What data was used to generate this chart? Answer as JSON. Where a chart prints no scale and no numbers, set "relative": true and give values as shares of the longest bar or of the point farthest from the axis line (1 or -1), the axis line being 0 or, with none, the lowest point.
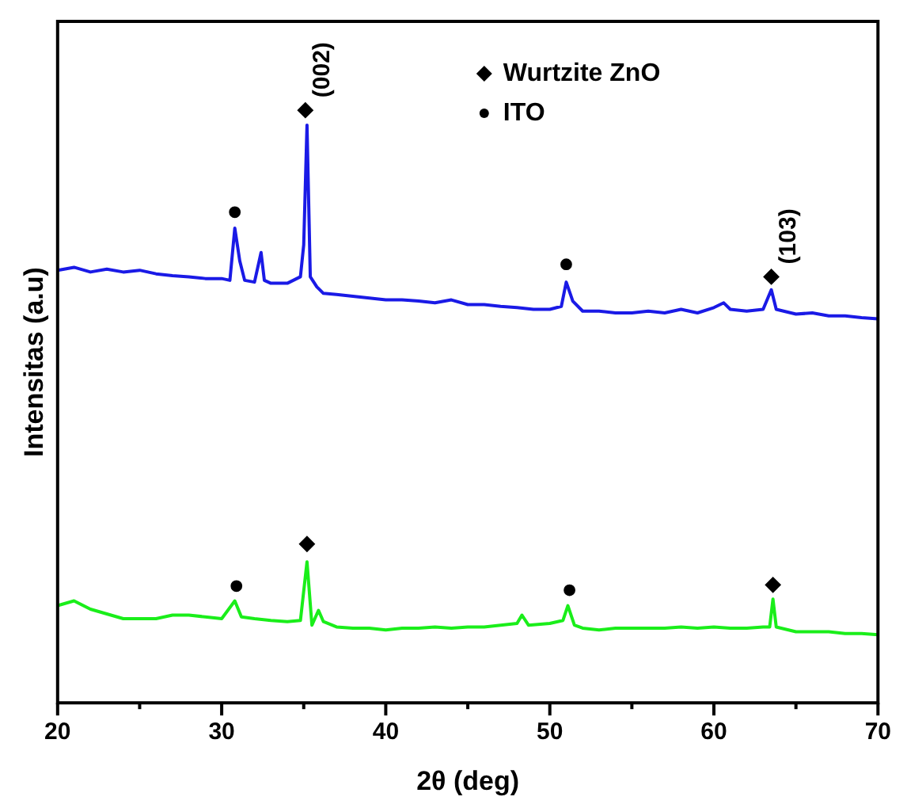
{
  "chart_data": {
    "type": "line",
    "xlabel": "2θ (deg)",
    "ylabel": "Intensitas (a.u)",
    "relative": true,
    "xlim": [
      20,
      70
    ],
    "xticks": [
      20,
      {
        "value": 25,
        "label": null
      },
      30,
      {
        "value": 35,
        "label": null
      },
      40,
      {
        "value": 45,
        "label": null
      },
      50,
      {
        "value": 55,
        "label": null
      },
      60,
      {
        "value": 65,
        "label": null
      },
      70
    ],
    "grid": false,
    "legend": "top right",
    "marker": "none",
    "line_style": "solid",
    "annotations": [
      {
        "text": "(002)",
        "x": 35.2,
        "y": 1.0
      },
      {
        "text": "(103)",
        "x": 63.6,
        "y": 0.719
      }
    ],
    "series": [
      {
        "color": "#1a1ae6",
        "x": [
          20,
          21,
          22,
          23,
          24,
          25,
          26,
          27,
          28,
          29,
          30,
          30.5,
          30.8,
          31.1,
          31.4,
          32,
          32.4,
          32.6,
          33,
          34,
          34.8,
          35.0,
          35.2,
          35.4,
          35.8,
          36.2,
          37,
          38,
          39,
          40,
          41,
          42,
          43,
          44,
          45,
          46,
          47,
          48,
          49,
          50,
          50.7,
          51.0,
          51.4,
          52,
          53,
          54,
          55,
          56,
          57,
          58,
          59,
          60,
          60.6,
          61,
          62,
          63,
          63.5,
          63.8,
          65,
          66,
          67,
          68,
          69,
          70
        ],
        "values": [
          0.73,
          0.735,
          0.727,
          0.732,
          0.727,
          0.73,
          0.724,
          0.721,
          0.719,
          0.716,
          0.716,
          0.713,
          0.801,
          0.746,
          0.713,
          0.71,
          0.76,
          0.713,
          0.708,
          0.708,
          0.719,
          0.773,
          0.975,
          0.719,
          0.702,
          0.691,
          0.689,
          0.686,
          0.683,
          0.68,
          0.68,
          0.678,
          0.675,
          0.68,
          0.672,
          0.672,
          0.669,
          0.667,
          0.664,
          0.664,
          0.669,
          0.71,
          0.678,
          0.661,
          0.661,
          0.658,
          0.658,
          0.661,
          0.658,
          0.664,
          0.658,
          0.667,
          0.675,
          0.664,
          0.661,
          0.664,
          0.697,
          0.664,
          0.656,
          0.658,
          0.653,
          0.653,
          0.65,
          0.648
        ]
      },
      {
        "color": "#1aee1a",
        "x": [
          20,
          21,
          22,
          23,
          24,
          25,
          26,
          27,
          28,
          29,
          30,
          30.8,
          31.2,
          32,
          33,
          34,
          34.8,
          35.2,
          35.5,
          35.9,
          36.2,
          37,
          38,
          39,
          40,
          41,
          42,
          43,
          44,
          45,
          46,
          47,
          48,
          48.3,
          48.7,
          50,
          50.8,
          51.1,
          51.5,
          52,
          53,
          54,
          55,
          56,
          57,
          58,
          59,
          60,
          61,
          62,
          63,
          63.4,
          63.6,
          63.8,
          65,
          66,
          67,
          68,
          69,
          70
        ],
        "values": [
          0.164,
          0.172,
          0.158,
          0.15,
          0.142,
          0.142,
          0.142,
          0.148,
          0.148,
          0.145,
          0.142,
          0.172,
          0.145,
          0.142,
          0.139,
          0.137,
          0.139,
          0.238,
          0.131,
          0.156,
          0.137,
          0.128,
          0.126,
          0.126,
          0.123,
          0.126,
          0.126,
          0.128,
          0.126,
          0.128,
          0.128,
          0.131,
          0.134,
          0.148,
          0.131,
          0.134,
          0.139,
          0.164,
          0.131,
          0.126,
          0.123,
          0.126,
          0.126,
          0.126,
          0.126,
          0.128,
          0.126,
          0.128,
          0.126,
          0.126,
          0.128,
          0.128,
          0.175,
          0.128,
          0.12,
          0.12,
          0.12,
          0.117,
          0.117,
          0.115
        ]
      },
      {
        "type": "scatter",
        "name": "Wurtzite ZnO",
        "color": "#000000",
        "marker": "diamond",
        "x": [
          35.1,
          63.5,
          35.2,
          63.6
        ],
        "values": [
          1.0,
          0.719,
          0.268,
          0.199
        ]
      },
      {
        "type": "scatter",
        "name": "ITO",
        "color": "#000000",
        "marker": "circle",
        "x": [
          30.8,
          51.0,
          30.9,
          51.2
        ],
        "values": [
          0.828,
          0.74,
          0.197,
          0.19
        ]
      }
    ]
  }
}
